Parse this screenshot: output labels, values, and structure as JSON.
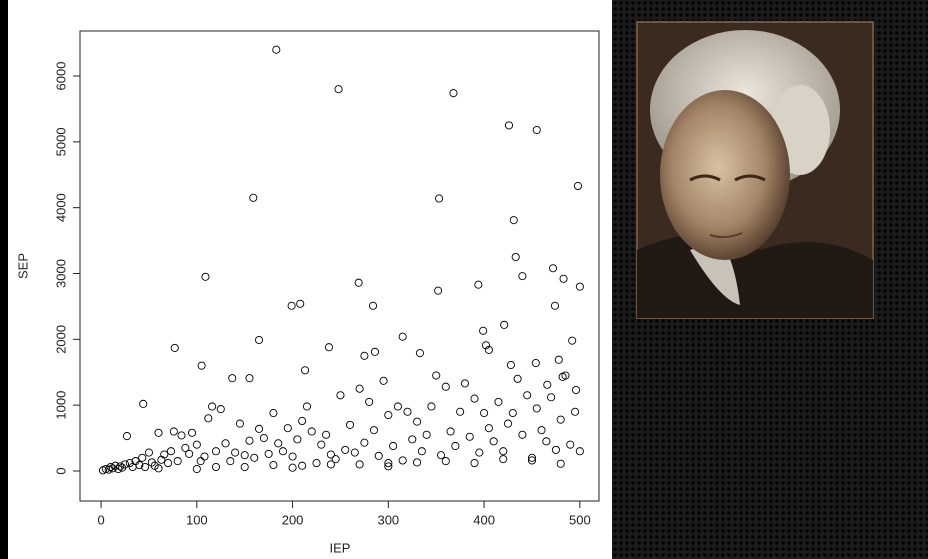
{
  "chart_data": {
    "type": "scatter",
    "x_label": "IEP",
    "y_label": "SEP",
    "xlim": [
      -22,
      520
    ],
    "ylim": [
      -456,
      6684
    ],
    "xticks": [
      0,
      100,
      200,
      300,
      400,
      500
    ],
    "yticks": [
      0,
      1000,
      2000,
      3000,
      4000,
      5000,
      6000
    ],
    "color": "#000000",
    "series": [
      {
        "x": [
          183,
          248,
          368,
          426,
          455,
          498,
          159,
          353,
          431,
          109,
          269,
          433,
          440,
          472,
          483,
          474,
          500,
          199,
          208,
          284,
          352,
          394,
          165,
          77,
          238,
          315,
          333,
          286,
          399,
          402,
          405,
          421,
          492,
          105,
          137,
          155,
          213,
          275,
          44,
          428,
          454,
          478,
          466,
          482,
          496,
          2,
          5,
          8,
          10,
          12,
          15,
          18,
          20,
          22,
          25,
          27,
          30,
          33,
          36,
          40,
          43,
          46,
          50,
          53,
          56,
          60,
          63,
          66,
          70,
          73,
          76,
          80,
          84,
          88,
          92,
          95,
          100,
          104,
          108,
          112,
          116,
          120,
          125,
          130,
          135,
          140,
          145,
          150,
          155,
          160,
          165,
          170,
          175,
          180,
          185,
          190,
          195,
          200,
          205,
          210,
          215,
          220,
          225,
          230,
          235,
          240,
          245,
          250,
          255,
          260,
          265,
          270,
          275,
          280,
          285,
          290,
          295,
          300,
          305,
          310,
          315,
          320,
          325,
          330,
          335,
          340,
          345,
          350,
          355,
          360,
          365,
          370,
          375,
          380,
          385,
          390,
          395,
          400,
          405,
          410,
          415,
          420,
          425,
          430,
          435,
          440,
          445,
          450,
          455,
          460,
          465,
          470,
          475,
          480,
          485,
          490,
          495,
          500,
          60,
          120,
          180,
          240,
          300,
          360,
          420,
          480,
          150,
          210,
          270,
          330,
          390,
          450,
          100,
          200,
          300
        ],
        "values": [
          6400,
          5800,
          5740,
          5250,
          5180,
          4330,
          4150,
          4140,
          3810,
          2950,
          2860,
          3250,
          2960,
          3080,
          2920,
          2510,
          2800,
          2510,
          2540,
          2510,
          2740,
          2830,
          1990,
          1870,
          1880,
          2040,
          1790,
          1810,
          2130,
          1910,
          1840,
          2220,
          1980,
          1600,
          1410,
          1410,
          1530,
          1750,
          1020,
          1610,
          1640,
          1690,
          1310,
          1430,
          1230,
          10,
          30,
          20,
          60,
          40,
          80,
          30,
          70,
          50,
          100,
          530,
          120,
          60,
          150,
          90,
          200,
          60,
          280,
          130,
          80,
          580,
          170,
          250,
          120,
          300,
          600,
          150,
          540,
          350,
          260,
          580,
          400,
          150,
          220,
          800,
          980,
          300,
          940,
          420,
          150,
          280,
          720,
          240,
          460,
          200,
          640,
          500,
          260,
          880,
          420,
          300,
          650,
          220,
          480,
          760,
          980,
          600,
          120,
          400,
          550,
          250,
          180,
          1150,
          320,
          700,
          280,
          1250,
          430,
          1050,
          620,
          230,
          1370,
          850,
          380,
          980,
          160,
          900,
          480,
          750,
          300,
          550,
          980,
          1450,
          240,
          1280,
          600,
          380,
          900,
          1330,
          520,
          1100,
          280,
          880,
          650,
          450,
          1050,
          300,
          720,
          880,
          1400,
          550,
          1150,
          200,
          950,
          620,
          450,
          1120,
          320,
          780,
          1450,
          400,
          900,
          300,
          40,
          60,
          90,
          100,
          120,
          150,
          180,
          110,
          60,
          80,
          100,
          130,
          120,
          160,
          30,
          50,
          70
        ]
      }
    ]
  }
}
